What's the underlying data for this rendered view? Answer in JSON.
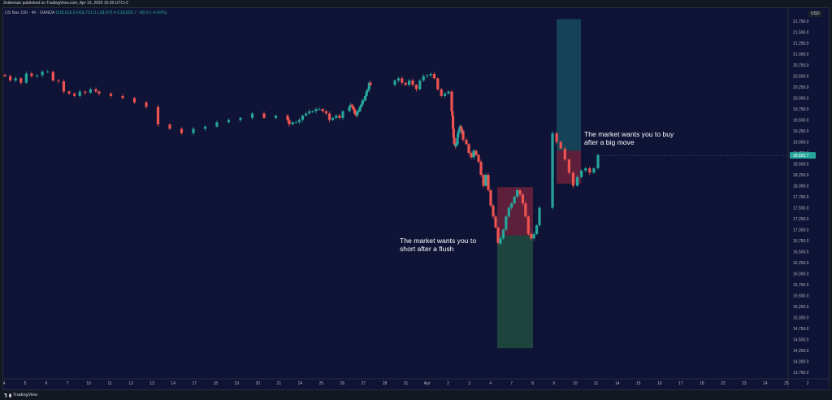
{
  "header": {
    "attribution": "Zeilerman published on TradingView.com, Apr 13, 2025 15:20 UTC+2"
  },
  "legend": {
    "symbol": "US Nas 100 · 4h · OANDA",
    "values": "O18,616.0 H18,751.0 L18,472.4 C18,693.7 −80.0 (−0.43%)"
  },
  "currency": "USD",
  "footer": {
    "brand": "TradingView"
  },
  "annotations": {
    "buy_note": "The market wants you to buy\nafter a big move",
    "short_note": "The market wants you to\nshort after a flush"
  },
  "colors": {
    "background": "#0f1335",
    "up": "#26a69a",
    "down": "#ef5350",
    "price_badge": "#26a69a",
    "stop_zone": "#f23645",
    "target_zone_green": "#1f4a3e",
    "target_zone_teal": "#16485a"
  },
  "chart_data": {
    "type": "candlestick",
    "symbol": "US Nas 100 · 4h · OANDA",
    "last_price": "18,693.7",
    "y_axis": {
      "range": [
        13600,
        22050
      ],
      "ticks": [
        "21,750.0",
        "21,500.0",
        "21,250.0",
        "21,000.0",
        "20,750.0",
        "20,500.0",
        "20,250.0",
        "20,000.0",
        "19,750.0",
        "19,500.0",
        "19,250.0",
        "19,000.0",
        "18,750.0",
        "18,500.0",
        "18,250.0",
        "18,000.0",
        "17,750.0",
        "17,500.0",
        "17,250.0",
        "17,000.0",
        "16,750.0",
        "16,500.0",
        "16,250.0",
        "16,000.0",
        "15,750.0",
        "15,500.0",
        "15,250.0",
        "15,000.0",
        "14,750.0",
        "14,500.0",
        "14,250.0",
        "14,000.0",
        "13,750.0"
      ]
    },
    "x_axis": {
      "ticks": [
        "4",
        "5",
        "6",
        "7",
        "10",
        "11",
        "12",
        "13",
        "14",
        "17",
        "18",
        "19",
        "20",
        "21",
        "24",
        "25",
        "26",
        "27",
        "28",
        "31",
        "Apr",
        "2",
        "3",
        "4",
        "7",
        "8",
        "9",
        "10",
        "11",
        "14",
        "15",
        "16",
        "17",
        "18",
        "22",
        "23",
        "24",
        "25",
        "2"
      ]
    },
    "close_path": [
      [
        20500,
        20400,
        20450,
        20350,
        20560,
        20500,
        20520,
        20600,
        20600,
        20400,
        20380,
        20150,
        20100,
        20050,
        20150,
        20120,
        20200,
        20150
      ],
      [
        20100,
        20050,
        20000,
        19900,
        19800,
        19400,
        19300,
        19200,
        19300,
        19350,
        19450,
        19500,
        19550,
        19650,
        19550,
        19600,
        19500
      ],
      [
        19400,
        19450,
        19450,
        19500,
        19600,
        19650,
        19700,
        19700,
        19750,
        19750,
        19700,
        19650,
        19500,
        19550,
        19600,
        19550,
        19700
      ],
      [
        19800,
        19850,
        19800,
        19750,
        19650,
        19600,
        19700,
        19700,
        19800,
        19850,
        19950,
        19950,
        20050,
        20150,
        20200,
        20350,
        20300
      ],
      [
        20400,
        20450,
        20350,
        20300,
        20400,
        20300,
        20200,
        20400,
        20500,
        20520,
        20550,
        20450,
        20200,
        20050,
        20100,
        20150
      ],
      [
        19700,
        19600,
        19300,
        19100,
        18950,
        18950,
        18900,
        18950,
        18950,
        19100,
        19200,
        19250,
        19300,
        19350,
        19350,
        19300,
        19200,
        19250,
        19050
      ],
      [
        18950,
        18750,
        18650,
        18800,
        18700,
        18550,
        18250,
        18000,
        18250,
        17900,
        17550,
        17300,
        17050,
        16700,
        16700
      ],
      [
        16800,
        17000,
        17300,
        17500,
        17600,
        17750,
        17900,
        17800,
        17600,
        17300,
        16900,
        16800,
        16900,
        17100,
        17500
      ],
      [
        19200,
        19000,
        18850,
        18600,
        18300,
        18000,
        18200,
        18350,
        18400,
        18300,
        18400,
        18700
      ]
    ],
    "boxes": [
      {
        "name": "short-stop",
        "from": 17970,
        "to": 16870,
        "color": "stop"
      },
      {
        "name": "short-target",
        "from": 16870,
        "to": 14300,
        "color": "green"
      },
      {
        "name": "long-target",
        "from": 21800,
        "to": 18800,
        "color": "teal"
      },
      {
        "name": "long-stop",
        "from": 18800,
        "to": 18050,
        "color": "stop"
      }
    ]
  }
}
